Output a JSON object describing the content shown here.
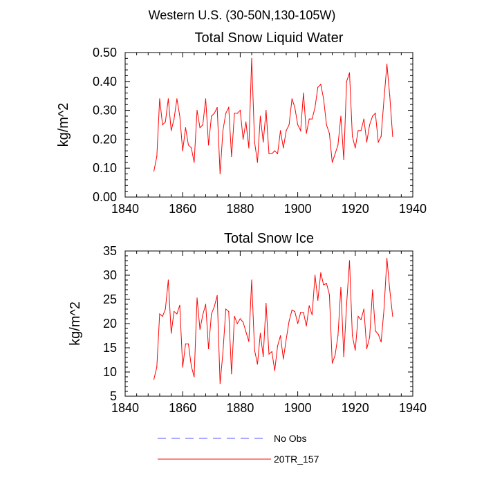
{
  "suptitle": "Western U.S. (30-50N,130-105W)",
  "legend": [
    {
      "label": "No Obs",
      "color": "#5555ff",
      "dashed": true
    },
    {
      "label": "20TR_157",
      "color": "#ff0000",
      "dashed": false
    }
  ],
  "chart_data": [
    {
      "type": "line",
      "title": "Total Snow Liquid Water",
      "xlabel": "",
      "ylabel": "kg/m^2",
      "xlim": [
        1840,
        1940
      ],
      "ylim": [
        0.0,
        0.5
      ],
      "xticks": [
        1840,
        1860,
        1880,
        1900,
        1920,
        1940
      ],
      "yticks": [
        0.0,
        0.1,
        0.2,
        0.3,
        0.4,
        0.5
      ],
      "ytick_labels": [
        "0.00",
        "0.10",
        "0.20",
        "0.30",
        "0.40",
        "0.50"
      ],
      "xtick_labels": [
        "1840",
        "1860",
        "1880",
        "1900",
        "1920",
        "1940"
      ],
      "series": [
        {
          "name": "20TR_157",
          "color": "#ff0000",
          "x": [
            1850,
            1851,
            1852,
            1853,
            1854,
            1855,
            1856,
            1857,
            1858,
            1859,
            1860,
            1861,
            1862,
            1863,
            1864,
            1865,
            1866,
            1867,
            1868,
            1869,
            1870,
            1871,
            1872,
            1873,
            1874,
            1875,
            1876,
            1877,
            1878,
            1879,
            1880,
            1881,
            1882,
            1883,
            1884,
            1885,
            1886,
            1887,
            1888,
            1889,
            1890,
            1891,
            1892,
            1893,
            1894,
            1895,
            1896,
            1897,
            1898,
            1899,
            1900,
            1901,
            1902,
            1903,
            1904,
            1905,
            1906,
            1907,
            1908,
            1909,
            1910,
            1911,
            1912,
            1913,
            1914,
            1915,
            1916,
            1917,
            1918,
            1919,
            1920,
            1921,
            1922,
            1923,
            1924,
            1925,
            1926,
            1927,
            1928,
            1929,
            1930,
            1931,
            1932,
            1933
          ],
          "values": [
            0.09,
            0.14,
            0.34,
            0.25,
            0.26,
            0.34,
            0.23,
            0.27,
            0.34,
            0.28,
            0.16,
            0.24,
            0.18,
            0.17,
            0.12,
            0.3,
            0.24,
            0.25,
            0.34,
            0.18,
            0.28,
            0.29,
            0.31,
            0.08,
            0.23,
            0.29,
            0.31,
            0.14,
            0.29,
            0.29,
            0.3,
            0.2,
            0.26,
            0.17,
            0.48,
            0.19,
            0.12,
            0.28,
            0.19,
            0.3,
            0.15,
            0.15,
            0.16,
            0.15,
            0.23,
            0.17,
            0.23,
            0.25,
            0.34,
            0.31,
            0.25,
            0.23,
            0.36,
            0.22,
            0.27,
            0.27,
            0.31,
            0.38,
            0.39,
            0.34,
            0.25,
            0.22,
            0.12,
            0.15,
            0.18,
            0.28,
            0.13,
            0.4,
            0.43,
            0.21,
            0.17,
            0.23,
            0.23,
            0.27,
            0.19,
            0.25,
            0.28,
            0.29,
            0.19,
            0.21,
            0.34,
            0.46,
            0.35,
            0.21
          ]
        }
      ]
    },
    {
      "type": "line",
      "title": "Total Snow Ice",
      "xlabel": "",
      "ylabel": "kg/m^2",
      "xlim": [
        1840,
        1940
      ],
      "ylim": [
        5,
        35
      ],
      "xticks": [
        1840,
        1860,
        1880,
        1900,
        1920,
        1940
      ],
      "yticks": [
        5,
        10,
        15,
        20,
        25,
        30,
        35
      ],
      "ytick_labels": [
        "5",
        "10",
        "15",
        "20",
        "25",
        "30",
        "35"
      ],
      "xtick_labels": [
        "1840",
        "1860",
        "1880",
        "1900",
        "1920",
        "1940"
      ],
      "series": [
        {
          "name": "20TR_157",
          "color": "#ff0000",
          "x": [
            1850,
            1851,
            1852,
            1853,
            1854,
            1855,
            1856,
            1857,
            1858,
            1859,
            1860,
            1861,
            1862,
            1863,
            1864,
            1865,
            1866,
            1867,
            1868,
            1869,
            1870,
            1871,
            1872,
            1873,
            1874,
            1875,
            1876,
            1877,
            1878,
            1879,
            1880,
            1881,
            1882,
            1883,
            1884,
            1885,
            1886,
            1887,
            1888,
            1889,
            1890,
            1891,
            1892,
            1893,
            1894,
            1895,
            1896,
            1897,
            1898,
            1899,
            1900,
            1901,
            1902,
            1903,
            1904,
            1905,
            1906,
            1907,
            1908,
            1909,
            1910,
            1911,
            1912,
            1913,
            1914,
            1915,
            1916,
            1917,
            1918,
            1919,
            1920,
            1921,
            1922,
            1923,
            1924,
            1925,
            1926,
            1927,
            1928,
            1929,
            1930,
            1931,
            1932,
            1933
          ],
          "values": [
            8.5,
            11.0,
            22.0,
            21.5,
            23.0,
            29.0,
            18.0,
            22.5,
            22.0,
            23.8,
            11.0,
            15.8,
            15.8,
            11.2,
            9.0,
            25.3,
            18.8,
            21.8,
            24.0,
            14.8,
            22.0,
            23.5,
            25.8,
            7.6,
            14.0,
            23.0,
            22.5,
            9.6,
            21.5,
            20.0,
            21.0,
            20.3,
            18.3,
            16.3,
            29.0,
            14.5,
            11.6,
            18.0,
            13.2,
            24.2,
            13.7,
            14.2,
            10.3,
            15.4,
            17.5,
            12.7,
            16.8,
            20.5,
            22.8,
            22.5,
            20.0,
            22.3,
            22.3,
            19.5,
            23.7,
            21.8,
            30.0,
            24.8,
            30.5,
            28.0,
            28.3,
            26.0,
            11.8,
            13.5,
            17.5,
            27.5,
            13.2,
            24.0,
            33.0,
            17.5,
            14.5,
            21.5,
            20.8,
            23.0,
            14.8,
            17.2,
            27.0,
            18.5,
            17.8,
            16.2,
            23.0,
            33.5,
            27.0,
            21.5
          ]
        }
      ]
    }
  ]
}
